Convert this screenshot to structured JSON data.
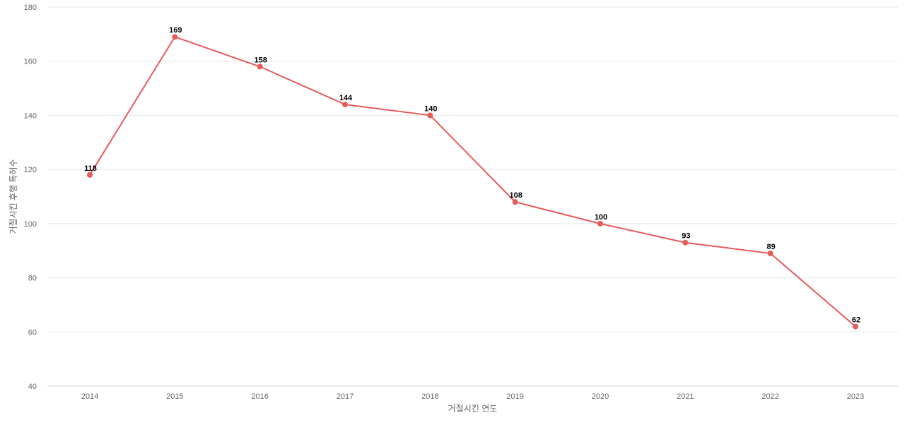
{
  "chart_data": {
    "type": "line",
    "title": "",
    "xlabel": "거절시킨 연도",
    "ylabel": "거절시킨 후행 특허수",
    "categories": [
      "2014",
      "2015",
      "2016",
      "2017",
      "2018",
      "2019",
      "2020",
      "2021",
      "2022",
      "2023"
    ],
    "series": [
      {
        "values": [
          118,
          169,
          158,
          144,
          140,
          108,
          100,
          93,
          89,
          62
        ],
        "color": "#e85a5a"
      }
    ],
    "ylim": [
      40,
      180
    ],
    "yticks": [
      40,
      60,
      80,
      100,
      120,
      140,
      160,
      180
    ],
    "grid": true,
    "legend": "none",
    "data_labels": true
  }
}
